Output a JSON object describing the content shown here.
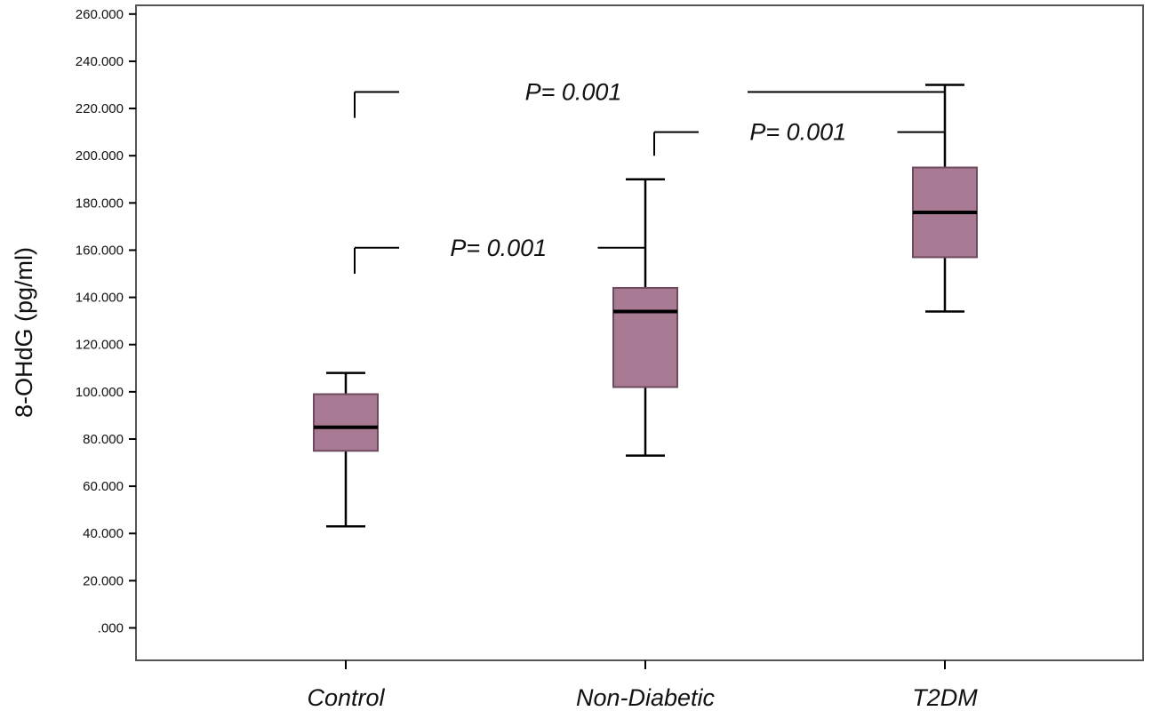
{
  "chart_data": {
    "type": "box",
    "title": "",
    "xlabel": "",
    "ylabel": "8-OHdG (pg/ml)",
    "ylim": [
      0,
      260
    ],
    "yticks": [
      0,
      20,
      40,
      60,
      80,
      100,
      120,
      140,
      160,
      180,
      200,
      220,
      240,
      260
    ],
    "ytick_labels": [
      ".000",
      "20.000",
      "40.000",
      "60.000",
      "80.000",
      "100.000",
      "120.000",
      "140.000",
      "160.000",
      "180.000",
      "200.000",
      "220.000",
      "240.000",
      "260.000"
    ],
    "categories": [
      "Control",
      "Non-Diabetic",
      "T2DM"
    ],
    "boxes": [
      {
        "category": "Control",
        "min": 43,
        "q1": 75,
        "median": 85,
        "q3": 99,
        "max": 108
      },
      {
        "category": "Non-Diabetic",
        "min": 73,
        "q1": 102,
        "median": 134,
        "q3": 144,
        "max": 190
      },
      {
        "category": "T2DM",
        "min": 134,
        "q1": 157,
        "median": 176,
        "q3": 195,
        "max": 230
      }
    ],
    "comparisons": [
      {
        "from": "Control",
        "to": "T2DM",
        "label": "P= 0.001",
        "level": 227,
        "from_y": 216,
        "to_y": 230
      },
      {
        "from": "Non-Diabetic",
        "to": "T2DM",
        "label": "P= 0.001",
        "level": 210,
        "from_y": 200,
        "to_y": 210
      },
      {
        "from": "Control",
        "to": "Non-Diabetic",
        "label": "P= 0.001",
        "level": 161,
        "from_y": 150,
        "to_y": 161
      }
    ],
    "colors": {
      "box_fill": "#a87a94",
      "box_stroke": "#6e4a5e",
      "line": "#000000",
      "frame": "#555555"
    }
  }
}
